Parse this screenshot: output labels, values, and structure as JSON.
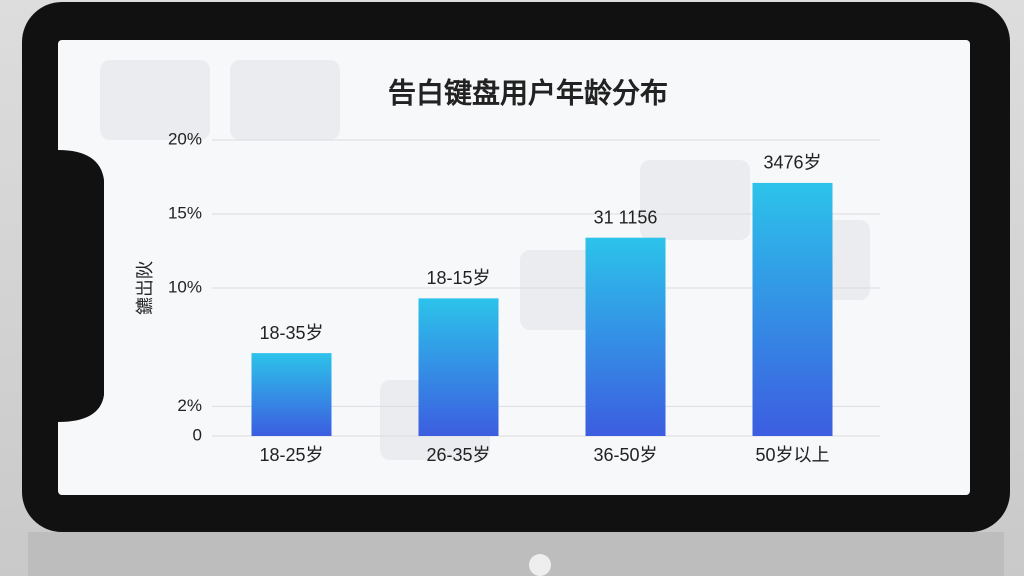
{
  "chart_data": {
    "type": "bar",
    "title": "告白键盘用户年龄分布",
    "y_label": "鑣岀阦",
    "categories": [
      "18-25岁",
      "26-35岁",
      "36-50岁",
      "50岁以上"
    ],
    "values": [
      5.6,
      9.3,
      13.4,
      17.1
    ],
    "annotations": [
      "18-35岁",
      "18-15岁",
      "31 1156",
      "3476岁"
    ],
    "color": "#2f7fe6",
    "ylim": [
      0,
      20
    ],
    "yticks": [
      0,
      {
        "value": 2,
        "label": "2%"
      },
      {
        "value": 10,
        "label": "10%"
      },
      {
        "value": 15,
        "label": "15%"
      },
      {
        "value": 20,
        "label": "20%"
      }
    ],
    "grid": true
  }
}
